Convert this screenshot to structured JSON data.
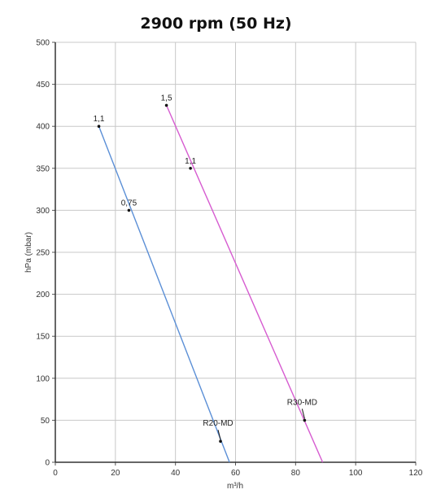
{
  "chart_data": {
    "type": "line",
    "title": "2900 rpm (50 Hz)",
    "xlabel": "m³/h",
    "ylabel": "hPa (mbar)",
    "xlim": [
      0,
      120
    ],
    "ylim": [
      0,
      500
    ],
    "xticks": [
      "0",
      "20",
      "40",
      "60",
      "80",
      "100",
      "120"
    ],
    "yticks": [
      "0",
      "50",
      "100",
      "150",
      "200",
      "250",
      "300",
      "350",
      "400",
      "450",
      "500"
    ],
    "grid": true,
    "series": [
      {
        "name": "R20-MD",
        "color": "#5b8fd6",
        "line": [
          [
            14.5,
            400
          ],
          [
            58,
            0
          ]
        ],
        "points": [
          {
            "x": 14.5,
            "y": 400,
            "label": "1,1"
          },
          {
            "x": 24.5,
            "y": 300,
            "label": "0,75"
          }
        ]
      },
      {
        "name": "R30-MD",
        "color": "#d65bd0",
        "line": [
          [
            37,
            425
          ],
          [
            89,
            0
          ]
        ],
        "points": [
          {
            "x": 37,
            "y": 425,
            "label": "1,5"
          },
          {
            "x": 45,
            "y": 350,
            "label": "1,1"
          }
        ]
      }
    ],
    "annotations": [
      {
        "text": "R20-MD",
        "x": 55,
        "y": 25,
        "series": "R20-MD"
      },
      {
        "text": "R30-MD",
        "x": 83,
        "y": 50,
        "series": "R30-MD"
      }
    ]
  }
}
